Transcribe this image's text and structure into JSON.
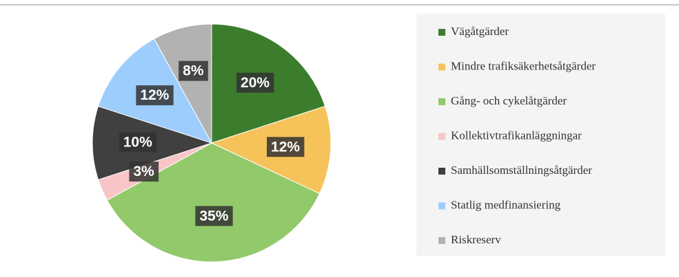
{
  "chart_data": {
    "type": "pie",
    "categories": [
      "Vägåtgärder",
      "Mindre trafiksäkerhetsåtgärder",
      "Gång- och cykelåtgärder",
      "Kollektivtrafikanläggningar",
      "Samhällsomställningsåtgärder",
      "Statlig medfinansiering",
      "Riskreserv"
    ],
    "values": [
      20,
      12,
      35,
      3,
      10,
      12,
      8
    ],
    "value_labels": [
      "20%",
      "12%",
      "35%",
      "3%",
      "10%",
      "12%",
      "8%"
    ],
    "colors": [
      "#3b7d2d",
      "#f5c35a",
      "#92c96a",
      "#f8c6c6",
      "#404040",
      "#9dcdfd",
      "#b2b2b2"
    ],
    "legend": "right"
  }
}
